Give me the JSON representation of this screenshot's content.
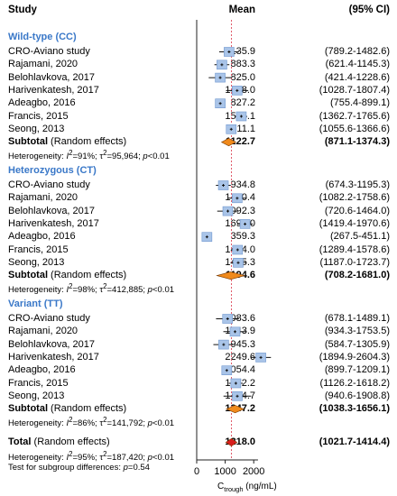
{
  "header": {
    "study": "Study",
    "mean": "Mean",
    "ci": "(95% CI)"
  },
  "xaxis": {
    "ticks": [
      "0",
      "1000",
      "2000"
    ],
    "label_main": "C",
    "label_sub": "trough",
    "label_unit": "(ng/mL)"
  },
  "groups": [
    {
      "title": "Wild-type (CC)",
      "studies": [
        {
          "name": "CRO-Aviano study",
          "mean": "1135.9",
          "ci": "(789.2-1482.6)"
        },
        {
          "name": "Rajamani, 2020",
          "mean": "883.3",
          "ci": "(621.4-1145.3)"
        },
        {
          "name": "Belohlavkova, 2017",
          "mean": "825.0",
          "ci": "(421.4-1228.6)"
        },
        {
          "name": "Harivenkatesh, 2017",
          "mean": "1418.0",
          "ci": "(1028.7-1807.4)"
        },
        {
          "name": "Adeagbo, 2016",
          "mean": "827.2",
          "ci": "(755.4-899.1)"
        },
        {
          "name": "Francis, 2015",
          "mean": "1564.1",
          "ci": "(1362.7-1765.6)"
        },
        {
          "name": "Seong, 2013",
          "mean": "1211.1",
          "ci": "(1055.6-1366.6)"
        }
      ],
      "subtotal": {
        "label": "Subtotal",
        "suffix": " (Random effects)",
        "mean": "1122.7",
        "ci": "(871.1-1374.3)"
      },
      "het": {
        "prefix": "Heterogeneity: ",
        "i2": "=91%; ",
        "tau2": "=95,964; ",
        "p": "<0.01"
      }
    },
    {
      "title": "Heterozygous (CT)",
      "studies": [
        {
          "name": "CRO-Aviano study",
          "mean": "934.8",
          "ci": "(674.3-1195.3)"
        },
        {
          "name": "Rajamani, 2020",
          "mean": "1420.4",
          "ci": "(1082.2-1758.6)"
        },
        {
          "name": "Belohlavkova, 2017",
          "mean": "1092.3",
          "ci": "(720.6-1464.0)"
        },
        {
          "name": "Harivenkatesh, 2017",
          "mean": "1695.0",
          "ci": "(1419.4-1970.6)"
        },
        {
          "name": "Adeagbo, 2016",
          "mean": "359.3",
          "ci": "(267.5-451.1)"
        },
        {
          "name": "Francis, 2015",
          "mean": "1434.0",
          "ci": "(1289.4-1578.6)"
        },
        {
          "name": "Seong, 2013",
          "mean": "1455.3",
          "ci": "(1187.0-1723.7)"
        }
      ],
      "subtotal": {
        "label": "Subtotal",
        "suffix": " (Random effects)",
        "mean": "1194.6",
        "ci": "(708.2-1681.0)"
      },
      "het": {
        "prefix": "Heterogeneity: ",
        "i2": "=98%; ",
        "tau2": "=412,885; ",
        "p": "<0.01"
      }
    },
    {
      "title": "Variant (TT)",
      "studies": [
        {
          "name": "CRO-Aviano study",
          "mean": "1083.6",
          "ci": "(678.1-1489.1)"
        },
        {
          "name": "Rajamani, 2020",
          "mean": "1343.9",
          "ci": "(934.3-1753.5)"
        },
        {
          "name": "Belohlavkova, 2017",
          "mean": "945.3",
          "ci": "(584.7-1305.9)"
        },
        {
          "name": "Harivenkatesh, 2017",
          "mean": "2249.6",
          "ci": "(1894.9-2604.3)"
        },
        {
          "name": "Adeagbo, 2016",
          "mean": "1054.4",
          "ci": "(899.7-1209.1)"
        },
        {
          "name": "Francis, 2015",
          "mean": "1372.2",
          "ci": "(1126.2-1618.2)"
        },
        {
          "name": "Seong, 2013",
          "mean": "1424.7",
          "ci": "(940.6-1908.8)"
        }
      ],
      "subtotal": {
        "label": "Subtotal",
        "suffix": " (Random effects)",
        "mean": "1347.2",
        "ci": "(1038.3-1656.1)"
      },
      "het": {
        "prefix": "Heterogeneity: ",
        "i2": "=86%; ",
        "tau2": "=141,792; ",
        "p": "<0.01"
      }
    }
  ],
  "total": {
    "label": "Total",
    "suffix": " (Random effects)",
    "mean": "1218.0",
    "ci": "(1021.7-1414.4)"
  },
  "total_het": {
    "prefix": "Heterogeneity: ",
    "i2": "=95%; ",
    "tau2": "=187,420; ",
    "p": "<0.01"
  },
  "subgroup_test": {
    "prefix": "Test for subgroup differences: ",
    "p": "=0.54"
  },
  "colors": {
    "group_title": "#3a78c8",
    "box_fill": "#a9c4e8",
    "box_stroke": "#6f97cf",
    "diamond_sub": "#f08a1c",
    "diamond_total": "#d81e1e",
    "ref_line": "#e05a6a"
  },
  "chart_data": {
    "type": "forest",
    "xlabel": "Ctrough (ng/mL)",
    "xticks": [
      0,
      1000,
      2000
    ],
    "reference_value": 1218.0,
    "groups": [
      {
        "name": "Wild-type (CC)",
        "studies": [
          [
            1135.9,
            789.2,
            1482.6
          ],
          [
            883.3,
            621.4,
            1145.3
          ],
          [
            825.0,
            421.4,
            1228.6
          ],
          [
            1418.0,
            1028.7,
            1807.4
          ],
          [
            827.2,
            755.4,
            899.1
          ],
          [
            1564.1,
            1362.7,
            1765.6
          ],
          [
            1211.1,
            1055.6,
            1366.6
          ]
        ],
        "subtotal": [
          1122.7,
          871.1,
          1374.3
        ]
      },
      {
        "name": "Heterozygous (CT)",
        "studies": [
          [
            934.8,
            674.3,
            1195.3
          ],
          [
            1420.4,
            1082.2,
            1758.6
          ],
          [
            1092.3,
            720.6,
            1464.0
          ],
          [
            1695.0,
            1419.4,
            1970.6
          ],
          [
            359.3,
            267.5,
            451.1
          ],
          [
            1434.0,
            1289.4,
            1578.6
          ],
          [
            1455.3,
            1187.0,
            1723.7
          ]
        ],
        "subtotal": [
          1194.6,
          708.2,
          1681.0
        ]
      },
      {
        "name": "Variant (TT)",
        "studies": [
          [
            1083.6,
            678.1,
            1489.1
          ],
          [
            1343.9,
            934.3,
            1753.5
          ],
          [
            945.3,
            584.7,
            1305.9
          ],
          [
            2249.6,
            1894.9,
            2604.3
          ],
          [
            1054.4,
            899.7,
            1209.1
          ],
          [
            1372.2,
            1126.2,
            1618.2
          ],
          [
            1424.7,
            940.6,
            1908.8
          ]
        ],
        "subtotal": [
          1347.2,
          1038.3,
          1656.1
        ]
      }
    ],
    "total": [
      1218.0,
      1021.7,
      1414.4
    ]
  }
}
